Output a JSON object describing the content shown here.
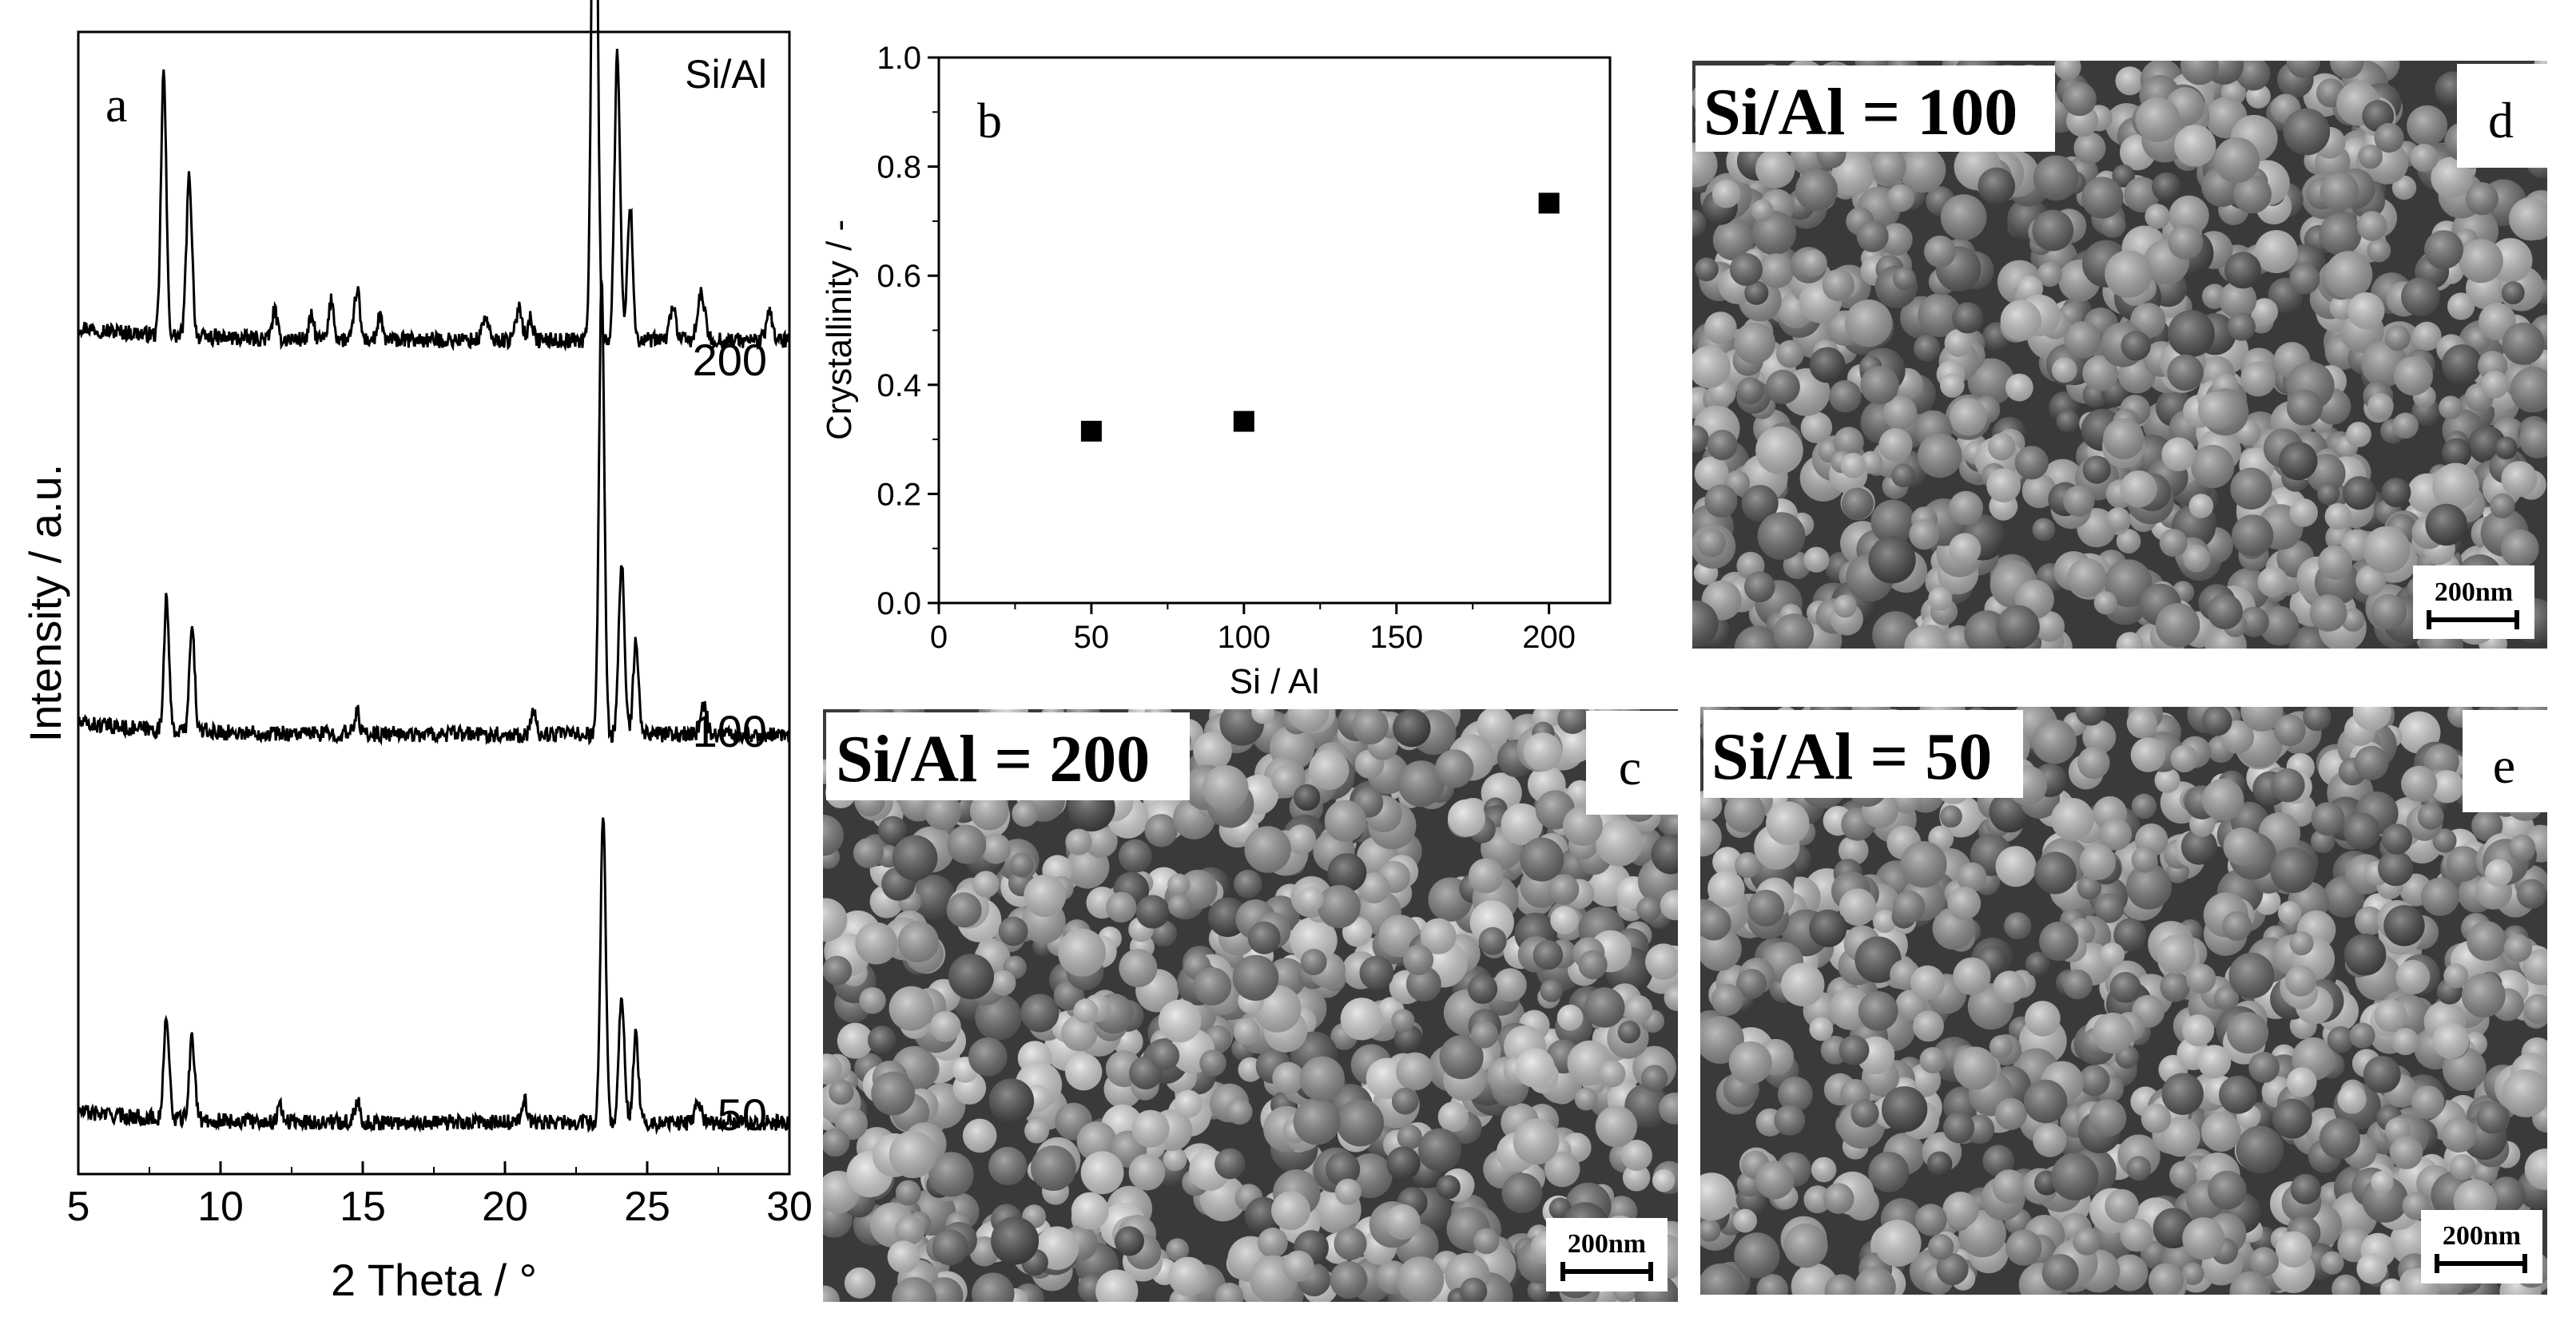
{
  "colors": {
    "ink": "#000000",
    "paper": "#ffffff"
  },
  "chart_data": [
    {
      "type": "line",
      "panel": "a",
      "title": "",
      "xlabel": "2 Theta / °",
      "ylabel": "Intensity / a.u.",
      "xlim": [
        5,
        30
      ],
      "xticks": [
        "5",
        "10",
        "15",
        "20",
        "25",
        "30"
      ],
      "legend_title": "Si/Al",
      "grid": false,
      "series": [
        {
          "name": "200",
          "offset": 0.7,
          "baseline": 0.03,
          "peaks": [
            [
              8.0,
              0.23,
              0.13
            ],
            [
              8.9,
              0.14,
              0.14
            ],
            [
              11.9,
              0.025,
              0.12
            ],
            [
              13.2,
              0.02,
              0.12
            ],
            [
              13.9,
              0.035,
              0.12
            ],
            [
              14.8,
              0.045,
              0.13
            ],
            [
              15.6,
              0.02,
              0.12
            ],
            [
              19.3,
              0.02,
              0.15
            ],
            [
              20.5,
              0.03,
              0.15
            ],
            [
              20.9,
              0.02,
              0.12
            ],
            [
              23.15,
              0.6,
              0.14
            ],
            [
              23.95,
              0.25,
              0.14
            ],
            [
              24.4,
              0.12,
              0.13
            ],
            [
              25.9,
              0.03,
              0.15
            ],
            [
              26.9,
              0.04,
              0.18
            ],
            [
              29.3,
              0.025,
              0.15
            ]
          ]
        },
        {
          "name": "100",
          "offset": 0.36,
          "baseline": 0.025,
          "peaks": [
            [
              8.1,
              0.12,
              0.12
            ],
            [
              9.0,
              0.09,
              0.13
            ],
            [
              14.8,
              0.02,
              0.12
            ],
            [
              21.0,
              0.02,
              0.12
            ],
            [
              23.4,
              0.4,
              0.13
            ],
            [
              24.1,
              0.15,
              0.14
            ],
            [
              24.6,
              0.08,
              0.13
            ],
            [
              27.0,
              0.025,
              0.15
            ]
          ]
        },
        {
          "name": "50",
          "offset": 0.02,
          "baseline": 0.025,
          "peaks": [
            [
              8.1,
              0.09,
              0.13
            ],
            [
              9.0,
              0.07,
              0.14
            ],
            [
              12.1,
              0.015,
              0.12
            ],
            [
              14.8,
              0.02,
              0.12
            ],
            [
              20.7,
              0.02,
              0.12
            ],
            [
              23.45,
              0.27,
              0.13
            ],
            [
              24.1,
              0.11,
              0.14
            ],
            [
              24.6,
              0.08,
              0.13
            ],
            [
              26.8,
              0.02,
              0.15
            ]
          ]
        }
      ]
    },
    {
      "type": "scatter",
      "panel": "b",
      "title": "",
      "xlabel": "Si / Al",
      "ylabel": "Crystallinity / -",
      "xlim": [
        0,
        220
      ],
      "ylim": [
        0.0,
        1.0
      ],
      "xticks": [
        0,
        50,
        100,
        150,
        200
      ],
      "xtick_labels": [
        "0",
        "50",
        "100",
        "150",
        "200"
      ],
      "yticks": [
        0.0,
        0.2,
        0.4,
        0.6,
        0.8,
        1.0
      ],
      "ytick_labels": [
        "0.0",
        "0.2",
        "0.4",
        "0.6",
        "0.8",
        "1.0"
      ],
      "grid": false,
      "series": [
        {
          "name": "crystallinity",
          "x": [
            50,
            100,
            200
          ],
          "y": [
            0.315,
            0.333,
            0.733
          ]
        }
      ]
    }
  ],
  "micrographs": [
    {
      "panel": "d",
      "label": "Si/Al = 100",
      "scale_bar": "200nm",
      "seed": 11,
      "brightness": 0.78
    },
    {
      "panel": "c",
      "label": "Si/Al = 200",
      "scale_bar": "200nm",
      "seed": 23,
      "brightness": 0.92
    },
    {
      "panel": "e",
      "label": "Si/Al = 50",
      "scale_bar": "200nm",
      "seed": 37,
      "brightness": 0.85
    }
  ]
}
